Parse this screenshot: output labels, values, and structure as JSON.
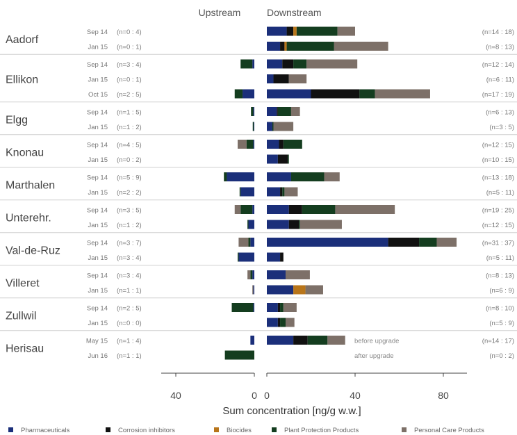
{
  "chart_data": {
    "type": "bar",
    "orientation": "horizontal",
    "stacked": true,
    "panels": [
      "Upstream",
      "Downstream"
    ],
    "xlabel": "Sum concentration [ng/g w.w.]",
    "upstream_ticks": [
      "40",
      "0"
    ],
    "downstream_ticks": [
      "0",
      "40",
      "80"
    ],
    "upstream_xlim": [
      50,
      0
    ],
    "downstream_xlim": [
      0,
      90
    ],
    "categories": [
      "Pharmaceuticals",
      "Corrosion inhibitors",
      "Biocides",
      "Plant Protection Products",
      "Personal Care Products"
    ],
    "colors": [
      "#1b2f7a",
      "#111111",
      "#b8751a",
      "#143d1f",
      "#7d7068"
    ],
    "legend_position": "bottom",
    "groups": [
      {
        "site": "Aadorf",
        "rows": [
          {
            "date": "Sep 14",
            "n_up": "(n=0 : 4)",
            "n_down": "(n=14 : 18)",
            "up": [
              0,
              0,
              0,
              0,
              0
            ],
            "down": [
              9,
              3,
              1.5,
              18.5,
              8
            ]
          },
          {
            "date": "Jan 15",
            "n_up": "(n=0 : 1)",
            "n_down": "(n=8 : 13)",
            "up": [
              0,
              0,
              0,
              0,
              0
            ],
            "down": [
              6,
              2,
              1,
              21.5,
              24.5
            ]
          }
        ]
      },
      {
        "site": "Ellikon",
        "rows": [
          {
            "date": "Sep 14",
            "n_up": "(n=3 : 4)",
            "n_down": "(n=12 : 14)",
            "up": [
              1,
              0,
              0,
              6,
              0
            ],
            "down": [
              7,
              5,
              0,
              6,
              23
            ]
          },
          {
            "date": "Jan 15",
            "n_up": "(n=0 : 1)",
            "n_down": "(n=6 : 11)",
            "up": [
              0,
              0,
              0,
              0,
              0
            ],
            "down": [
              3,
              7,
              0,
              0,
              8
            ]
          },
          {
            "date": "Oct 15",
            "n_up": "(n=2 : 5)",
            "n_down": "(n=17 : 19)",
            "up": [
              6,
              0,
              0,
              4,
              0
            ],
            "down": [
              20,
              22,
              0,
              7,
              25
            ]
          }
        ]
      },
      {
        "site": "Elgg",
        "rows": [
          {
            "date": "Sep 14",
            "n_up": "(n=1 : 5)",
            "n_down": "(n=6 : 13)",
            "up": [
              0.5,
              0,
              0,
              1.2,
              0
            ],
            "down": [
              4.5,
              0.5,
              0,
              6,
              4
            ]
          },
          {
            "date": "Jan 15",
            "n_up": "(n=1 : 2)",
            "n_down": "(n=3 : 5)",
            "up": [
              0.3,
              0,
              0,
              0.5,
              0
            ],
            "down": [
              2.5,
              0,
              0,
              0.5,
              9
            ]
          }
        ]
      },
      {
        "site": "Knonau",
        "rows": [
          {
            "date": "Sep 14",
            "n_up": "(n=4 : 5)",
            "n_down": "(n=12 : 15)",
            "up": [
              0.5,
              0,
              0,
              3.5,
              4.5
            ],
            "down": [
              5.5,
              2,
              0,
              8.5,
              0
            ]
          },
          {
            "date": "Jan 15",
            "n_up": "(n=0 : 2)",
            "n_down": "(n=10 : 15)",
            "up": [
              0,
              0,
              0,
              0,
              0
            ],
            "down": [
              5,
              4.5,
              0,
              0.5,
              0
            ]
          }
        ]
      },
      {
        "site": "Marthalen",
        "rows": [
          {
            "date": "Sep 14",
            "n_up": "(n=5 : 9)",
            "n_down": "(n=13 : 18)",
            "up": [
              14,
              0,
              0,
              1.5,
              0
            ],
            "down": [
              11,
              0,
              0,
              15,
              7
            ]
          },
          {
            "date": "Jan 15",
            "n_up": "(n=2 : 2)",
            "n_down": "(n=5 : 11)",
            "up": [
              7,
              0,
              0,
              0.5,
              0
            ],
            "down": [
              6,
              1,
              0,
              1,
              6
            ]
          }
        ]
      },
      {
        "site": "Unterehr.",
        "rows": [
          {
            "date": "Sep 14",
            "n_up": "(n=3 : 5)",
            "n_down": "(n=19 : 25)",
            "up": [
              1,
              0,
              0,
              6,
              3
            ],
            "down": [
              10,
              6,
              0,
              15,
              27
            ]
          },
          {
            "date": "Jan 15",
            "n_up": "(n=1 : 2)",
            "n_down": "(n=12 : 15)",
            "up": [
              3,
              0,
              0,
              0.5,
              0
            ],
            "down": [
              10,
              4.5,
              0,
              0.5,
              19
            ]
          }
        ]
      },
      {
        "site": "Val-de-Ruz",
        "rows": [
          {
            "date": "Sep 14",
            "n_up": "(n=3 : 7)",
            "n_down": "(n=31 : 37)",
            "up": [
              2,
              0,
              0,
              1,
              5
            ],
            "down": [
              55,
              14,
              0,
              8,
              9
            ]
          },
          {
            "date": "Jan 15",
            "n_up": "(n=3 : 4)",
            "n_down": "(n=5 : 11)",
            "up": [
              8,
              0,
              0,
              0.5,
              0
            ],
            "down": [
              6,
              1.5,
              0,
              0,
              0
            ]
          }
        ]
      },
      {
        "site": "Villeret",
        "rows": [
          {
            "date": "Sep 14",
            "n_up": "(n=3 : 4)",
            "n_down": "(n=8 : 13)",
            "up": [
              1,
              0,
              0,
              1,
              1.5
            ],
            "down": [
              8.5,
              0,
              0,
              0,
              11
            ]
          },
          {
            "date": "Jan 15",
            "n_up": "(n=1 : 1)",
            "n_down": "(n=6 : 9)",
            "up": [
              0.5,
              0,
              0,
              0,
              0.5
            ],
            "down": [
              12,
              0,
              5.5,
              0,
              8
            ]
          }
        ]
      },
      {
        "site": "Zullwil",
        "rows": [
          {
            "date": "Sep 14",
            "n_up": "(n=2 : 5)",
            "n_down": "(n=8 : 10)",
            "up": [
              0.5,
              0,
              0,
              11,
              0
            ],
            "down": [
              5,
              1,
              0,
              1.5,
              6
            ]
          },
          {
            "date": "Jan 15",
            "n_up": "(n=0 : 0)",
            "n_down": "(n=5 : 9)",
            "up": [
              0,
              0,
              0,
              0,
              0
            ],
            "down": [
              5,
              1,
              0,
              2.5,
              4
            ]
          }
        ]
      },
      {
        "site": "Herisau",
        "rows": [
          {
            "date": "May 15",
            "n_up": "(n=1 : 4)",
            "n_down": "(n=14 : 17)",
            "note": "before upgrade",
            "up": [
              2,
              0,
              0,
              0,
              0
            ],
            "down": [
              12,
              6.5,
              0,
              9,
              8
            ]
          },
          {
            "date": "Jun 16",
            "n_up": "(n=1 : 1)",
            "n_down": "(n=0 : 2)",
            "note": "after upgrade",
            "up": [
              0,
              0,
              0,
              15,
              0
            ],
            "down": [
              0,
              0,
              0,
              0,
              0
            ]
          }
        ]
      }
    ]
  }
}
